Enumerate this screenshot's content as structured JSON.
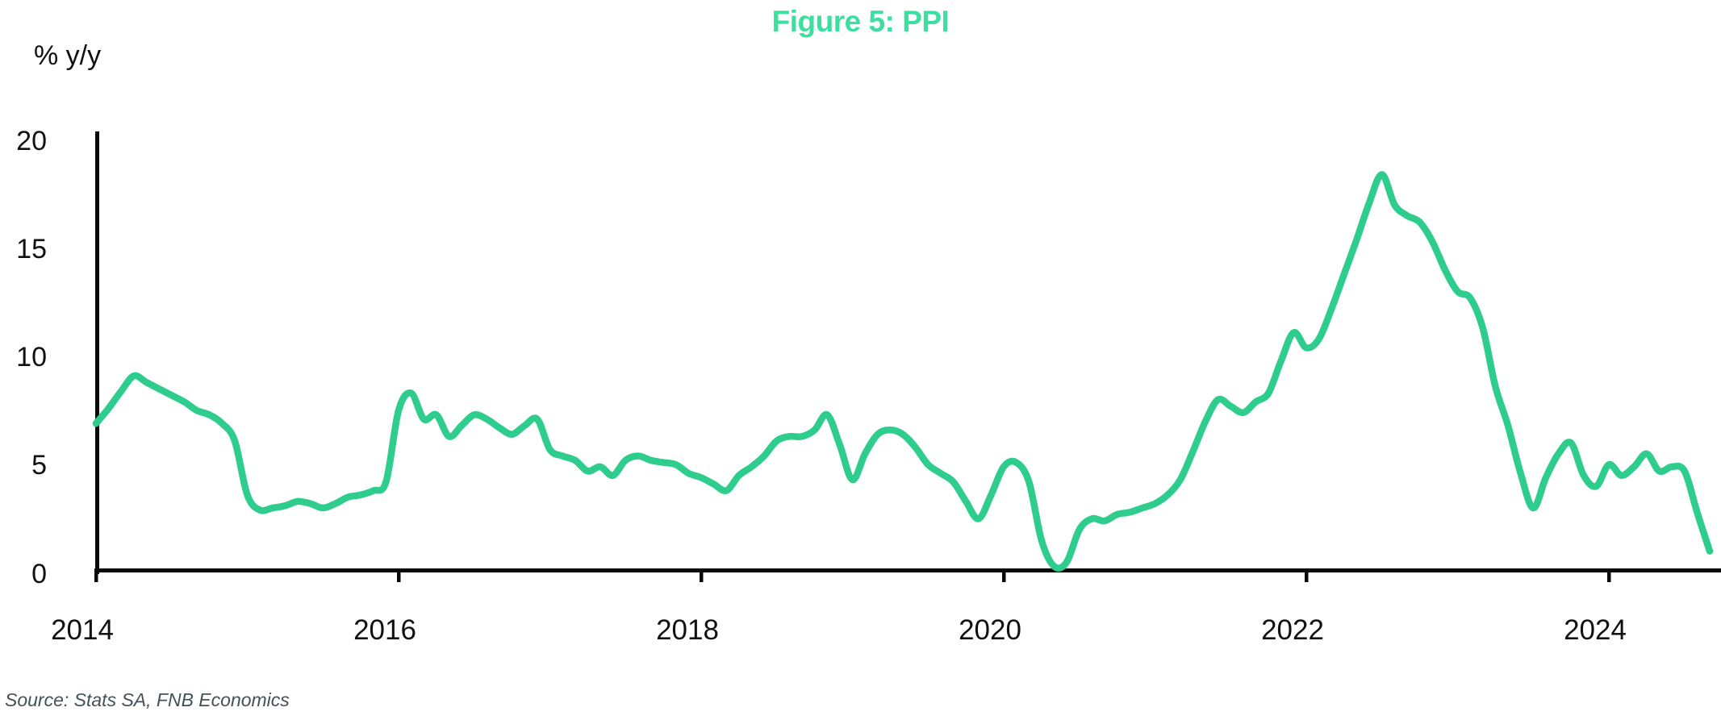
{
  "header": {
    "title": "Figure 5: PPI"
  },
  "y_axis_unit": "% y/y",
  "source_note": "Source: Stats SA, FNB Economics",
  "colors": {
    "title_green": "#3bdf9f",
    "line_green": "#2ecd8e",
    "axis_black": "#0a0a0a",
    "label_black": "#111111",
    "source_gray": "#435257",
    "background": "#ffffff"
  },
  "chart_data": {
    "type": "line",
    "title": "Figure 5: PPI",
    "xlabel": "",
    "ylabel": "% y/y",
    "ylim": [
      0,
      20
    ],
    "y_ticks": [
      0,
      5,
      10,
      15,
      20
    ],
    "x_ticks": [
      2014,
      2016,
      2018,
      2020,
      2022,
      2024
    ],
    "grid": false,
    "legend_position": "none",
    "x_start_year": 2014,
    "x_frequency": "monthly",
    "x_end": "2024-09",
    "series": [
      {
        "name": "PPI % y/y",
        "values": [
          6.9,
          7.6,
          8.4,
          9.1,
          8.8,
          8.5,
          8.2,
          7.9,
          7.5,
          7.3,
          6.9,
          6.1,
          3.6,
          2.9,
          3.0,
          3.1,
          3.3,
          3.2,
          3.0,
          3.2,
          3.5,
          3.6,
          3.8,
          4.2,
          7.5,
          8.3,
          7.1,
          7.3,
          6.3,
          6.8,
          7.3,
          7.1,
          6.7,
          6.4,
          6.8,
          7.1,
          5.7,
          5.4,
          5.2,
          4.7,
          4.9,
          4.5,
          5.2,
          5.4,
          5.2,
          5.1,
          5.0,
          4.6,
          4.4,
          4.1,
          3.8,
          4.5,
          4.9,
          5.4,
          6.1,
          6.3,
          6.3,
          6.6,
          7.3,
          5.9,
          4.3,
          5.5,
          6.4,
          6.6,
          6.4,
          5.8,
          5.0,
          4.6,
          4.2,
          3.3,
          2.5,
          3.6,
          4.9,
          5.1,
          4.2,
          1.5,
          0.3,
          0.5,
          2.0,
          2.5,
          2.4,
          2.7,
          2.8,
          3.0,
          3.2,
          3.6,
          4.3,
          5.6,
          7.0,
          8.0,
          7.7,
          7.4,
          7.9,
          8.3,
          9.8,
          11.1,
          10.4,
          10.8,
          12.2,
          13.8,
          15.4,
          17.1,
          18.4,
          17.0,
          16.5,
          16.2,
          15.3,
          14.0,
          13.0,
          12.7,
          11.3,
          8.6,
          6.8,
          4.6,
          3.0,
          4.4,
          5.5,
          6.0,
          4.5,
          4.0,
          5.0,
          4.5,
          4.9,
          5.5,
          4.7,
          4.9,
          4.7,
          2.8,
          1.0
        ]
      }
    ]
  }
}
